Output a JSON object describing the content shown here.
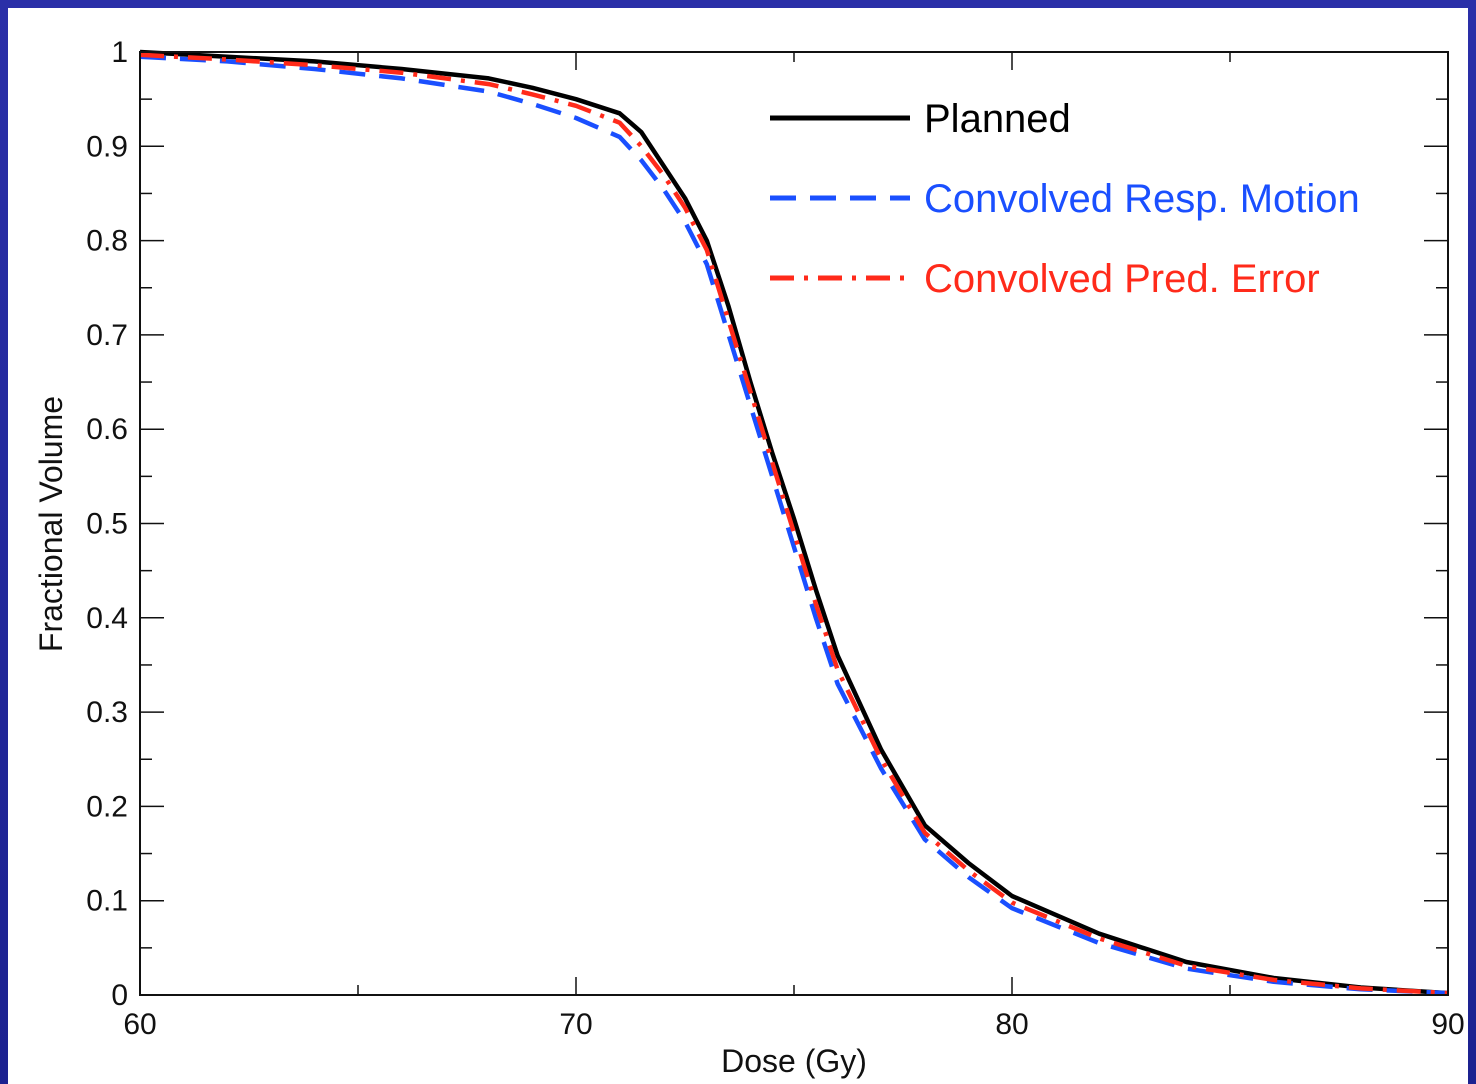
{
  "chart_data": {
    "type": "line",
    "xlabel": "Dose (Gy)",
    "ylabel": "Fractional Volume",
    "xlim": [
      60,
      90
    ],
    "ylim": [
      0,
      1
    ],
    "x_ticks": [
      "60",
      "70",
      "80",
      "90"
    ],
    "y_ticks": [
      "0",
      "0.1",
      "0.2",
      "0.3",
      "0.4",
      "0.5",
      "0.6",
      "0.7",
      "0.8",
      "0.9",
      "1"
    ],
    "grid": false,
    "legend_position": "top-right",
    "series": [
      {
        "name": "Planned",
        "color": "#000000",
        "dash": "solid",
        "x": [
          60,
          62,
          64,
          66,
          68,
          69,
          70,
          71,
          71.5,
          72,
          72.5,
          73,
          73.5,
          74,
          74.5,
          75,
          75.5,
          76,
          77,
          78,
          79,
          80,
          82,
          84,
          86,
          88,
          90
        ],
        "y": [
          1.0,
          0.995,
          0.99,
          0.982,
          0.972,
          0.962,
          0.95,
          0.935,
          0.915,
          0.88,
          0.845,
          0.8,
          0.73,
          0.65,
          0.575,
          0.505,
          0.43,
          0.36,
          0.26,
          0.18,
          0.14,
          0.105,
          0.065,
          0.035,
          0.018,
          0.008,
          0.002
        ]
      },
      {
        "name": "Convolved Resp. Motion",
        "color": "#1a4fff",
        "dash": "dashed",
        "x": [
          60,
          62,
          64,
          66,
          68,
          69,
          70,
          71,
          71.5,
          72,
          72.5,
          73,
          73.5,
          74,
          74.5,
          75,
          75.5,
          76,
          77,
          78,
          79,
          80,
          82,
          84,
          86,
          88,
          90
        ],
        "y": [
          0.995,
          0.99,
          0.982,
          0.972,
          0.958,
          0.945,
          0.93,
          0.91,
          0.885,
          0.855,
          0.82,
          0.775,
          0.7,
          0.625,
          0.55,
          0.475,
          0.4,
          0.33,
          0.24,
          0.165,
          0.125,
          0.092,
          0.055,
          0.028,
          0.014,
          0.006,
          0.002
        ]
      },
      {
        "name": "Convolved Pred. Error",
        "color": "#ff2a1a",
        "dash": "dash-dot",
        "x": [
          60,
          62,
          64,
          66,
          68,
          69,
          70,
          71,
          71.5,
          72,
          72.5,
          73,
          73.5,
          74,
          74.5,
          75,
          75.5,
          76,
          77,
          78,
          79,
          80,
          82,
          84,
          86,
          88,
          90
        ],
        "y": [
          0.997,
          0.992,
          0.986,
          0.978,
          0.966,
          0.955,
          0.943,
          0.925,
          0.9,
          0.87,
          0.835,
          0.79,
          0.715,
          0.64,
          0.565,
          0.49,
          0.415,
          0.345,
          0.25,
          0.172,
          0.132,
          0.098,
          0.06,
          0.031,
          0.016,
          0.007,
          0.002
        ]
      }
    ]
  }
}
